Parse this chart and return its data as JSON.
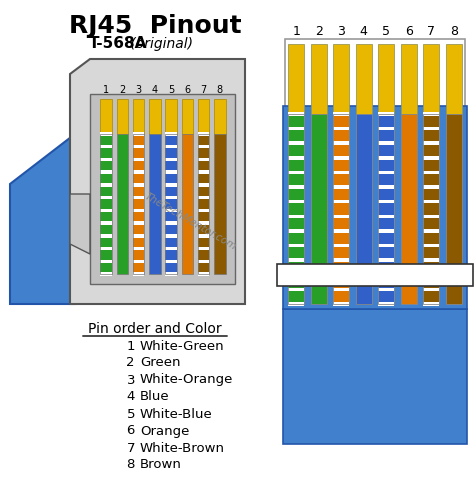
{
  "title": "RJ45  Pinout",
  "subtitle_bold": "T-568A",
  "subtitle_normal": " (original)",
  "watermark": "TheTechMentor.com",
  "bg_color": "#ffffff",
  "pin_labels": [
    "1",
    "2",
    "3",
    "4",
    "5",
    "6",
    "7",
    "8"
  ],
  "pin_order_title": "Pin order and Color",
  "pin_list": [
    {
      "num": "1",
      "label": "White-Green"
    },
    {
      "num": "2",
      "label": "Green"
    },
    {
      "num": "3",
      "label": "White-Orange"
    },
    {
      "num": "4",
      "label": "Blue"
    },
    {
      "num": "5",
      "label": "White-Blue"
    },
    {
      "num": "6",
      "label": "Orange"
    },
    {
      "num": "7",
      "label": "White-Brown"
    },
    {
      "num": "8",
      "label": "Brown"
    }
  ],
  "wire_colors": [
    {
      "solid": "#28a028",
      "stripe": "#ffffff",
      "top": "#e8b800"
    },
    {
      "solid": "#28a028",
      "stripe": null,
      "top": "#e8b800"
    },
    {
      "solid": "#e07800",
      "stripe": "#ffffff",
      "top": "#e8b800"
    },
    {
      "solid": "#3060c8",
      "stripe": null,
      "top": "#e8b800"
    },
    {
      "solid": "#3060c8",
      "stripe": "#ffffff",
      "top": "#e8b800"
    },
    {
      "solid": "#e07800",
      "stripe": null,
      "top": "#e8b800"
    },
    {
      "solid": "#8b5a00",
      "stripe": "#ffffff",
      "top": "#e8b800"
    },
    {
      "solid": "#8b5a00",
      "stripe": null,
      "top": "#e8b800"
    }
  ],
  "cable_color": "#4080cc",
  "connector_color": "#e0e0e0",
  "border_color": "#555555"
}
